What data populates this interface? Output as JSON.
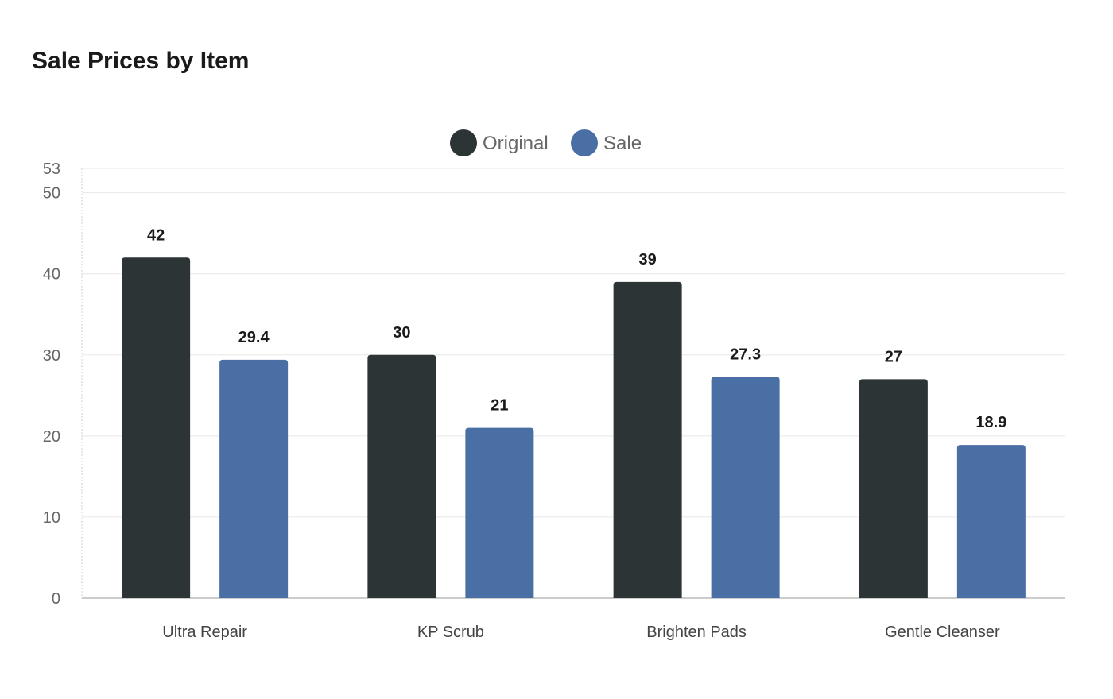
{
  "chart_data": {
    "type": "bar",
    "title": "Sale Prices by Item",
    "xlabel": "",
    "ylabel": "",
    "categories": [
      "Ultra Repair",
      "KP Scrub",
      "Brighten Pads",
      "Gentle Cleanser"
    ],
    "series": [
      {
        "name": "Original",
        "color": "#2d3436",
        "values": [
          42,
          30,
          39,
          27
        ],
        "labels": [
          "42",
          "30",
          "39",
          "27"
        ]
      },
      {
        "name": "Sale",
        "color": "#4a6fa5",
        "values": [
          29.4,
          21,
          27.3,
          18.9
        ],
        "labels": [
          "29.4",
          "21",
          "27.3",
          "18.9"
        ]
      }
    ],
    "ylim": [
      0,
      53
    ],
    "yticks": [
      "0",
      "10",
      "20",
      "30",
      "40",
      "50",
      "53"
    ],
    "grid": true,
    "legend_position": "top-center"
  }
}
